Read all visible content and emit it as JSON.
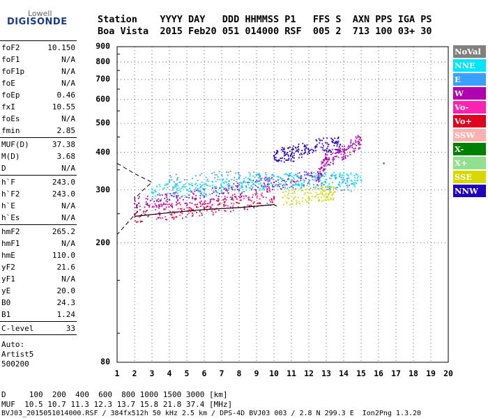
{
  "logo": {
    "top": "Lowell",
    "main": "DIGISONDE"
  },
  "header": {
    "line1": "Station    YYYY DAY   DDD HHMMSS P1   FFS S  AXN PPS IGA PS",
    "line2": "Boa Vista  2015 Feb20 051 014000 RSF  005 2  713 100 03+ 30"
  },
  "params": [
    {
      "label": "foF2",
      "value": "10.150"
    },
    {
      "label": "foF1",
      "value": "N/A"
    },
    {
      "label": "foF1p",
      "value": "N/A"
    },
    {
      "label": "foE",
      "value": "N/A"
    },
    {
      "label": "foEp",
      "value": "0.46"
    },
    {
      "label": "fxI",
      "value": "10.55"
    },
    {
      "label": "foEs",
      "value": "N/A"
    },
    {
      "label": "fmin",
      "value": "2.85"
    },
    {
      "label": "MUF(D)",
      "value": "37.38"
    },
    {
      "label": "M(D)",
      "value": "3.68"
    },
    {
      "label": "D",
      "value": "N/A"
    },
    {
      "label": "h`F",
      "value": "243.0"
    },
    {
      "label": "h`F2",
      "value": "243.0"
    },
    {
      "label": "h`E",
      "value": "N/A"
    },
    {
      "label": "h`Es",
      "value": "N/A"
    },
    {
      "label": "hmF2",
      "value": "265.2"
    },
    {
      "label": "hmF1",
      "value": "N/A"
    },
    {
      "label": "hmE",
      "value": "110.0"
    },
    {
      "label": "yF2",
      "value": "21.6"
    },
    {
      "label": "yF1",
      "value": "N/A"
    },
    {
      "label": "yE",
      "value": "20.0"
    },
    {
      "label": "B0",
      "value": "24.3"
    },
    {
      "label": "B1",
      "value": "1.24"
    },
    {
      "label": "C-level",
      "value": "33"
    }
  ],
  "auto": {
    "line1": "Auto:",
    "line2": "Artist5",
    "line3": "500200"
  },
  "legend": [
    {
      "label": "NoVal",
      "color": "#808080",
      "text": "#ffffff"
    },
    {
      "label": "NNE",
      "color": "#00e5ff",
      "text": "#ffffff"
    },
    {
      "label": "E",
      "color": "#3aa0ff",
      "text": "#ffffff"
    },
    {
      "label": "W",
      "color": "#b000b0",
      "text": "#ffffff"
    },
    {
      "label": "Vo-",
      "color": "#ff20b0",
      "text": "#ffffff"
    },
    {
      "label": "Vo+",
      "color": "#e00020",
      "text": "#ffffff"
    },
    {
      "label": "SSW",
      "color": "#ffb0b0",
      "text": "#ffffff"
    },
    {
      "label": "X-",
      "color": "#008000",
      "text": "#ffffff"
    },
    {
      "label": "X+",
      "color": "#90e090",
      "text": "#ffffff"
    },
    {
      "label": "SSE",
      "color": "#d8d800",
      "text": "#ffffff"
    },
    {
      "label": "NNW",
      "color": "#2000c0",
      "text": "#ffffff"
    }
  ],
  "footer": {
    "line1": "D     100  200  400  600  800 1000 1500 3000 [km]",
    "line2": "MUF  10.5 10.7 11.3 12.3 13.7 15.8 21.8 37.4 [MHz]",
    "line3": "BVJ03_2015051014000.RSF / 384fx512h 50 kHz 2.5 km / DPS-4D BVJ03 003 / 2.8 N 299.3 E  Ion2Png 1.3.20"
  },
  "chart_data": {
    "type": "scatter",
    "xlim": [
      1,
      20
    ],
    "ylim": [
      80,
      900
    ],
    "x_ticks": [
      1,
      2,
      3,
      4,
      5,
      6,
      7,
      8,
      9,
      10,
      11,
      12,
      13,
      14,
      15,
      16,
      17,
      18,
      19,
      20
    ],
    "y_ticks": [
      80,
      200,
      300,
      400,
      500,
      600,
      700,
      800,
      900
    ],
    "grid": "dotted",
    "legend_position": "right",
    "series": [
      {
        "name": "W",
        "values": [
          [
            2.0,
            270
          ],
          [
            4.0,
            278
          ],
          [
            6.0,
            286
          ],
          [
            8.0,
            300
          ],
          [
            10.0,
            318
          ],
          [
            12.5,
            330
          ],
          [
            13.0,
            380
          ],
          [
            14.0,
            402
          ],
          [
            15.0,
            440
          ]
        ]
      },
      {
        "name": "NNE",
        "values": [
          [
            3.0,
            295
          ],
          [
            5.0,
            300
          ],
          [
            7.0,
            308
          ],
          [
            9.0,
            318
          ],
          [
            11.0,
            322
          ],
          [
            13.0,
            325
          ],
          [
            15.0,
            322
          ]
        ]
      },
      {
        "name": "E",
        "values": [
          [
            4.0,
            320
          ],
          [
            8.0,
            330
          ],
          [
            12.0,
            320
          ],
          [
            14.5,
            315
          ]
        ]
      },
      {
        "name": "NNW",
        "values": [
          [
            10.0,
            390
          ],
          [
            11.0,
            395
          ],
          [
            12.4,
            420
          ],
          [
            13.8,
            425
          ]
        ]
      },
      {
        "name": "Vo-",
        "values": [
          [
            2.0,
            250
          ],
          [
            6.0,
            262
          ],
          [
            10.0,
            285
          ]
        ]
      },
      {
        "name": "Vo+",
        "values": [
          [
            2.0,
            248
          ],
          [
            6.0,
            260
          ],
          [
            10.0,
            282
          ]
        ]
      },
      {
        "name": "SSE",
        "values": [
          [
            10.5,
            283
          ],
          [
            12.5,
            290
          ],
          [
            13.5,
            296
          ]
        ]
      },
      {
        "name": "X-",
        "values": [
          [
            16.3,
            368
          ]
        ]
      }
    ],
    "profile_curve": [
      [
        2.0,
        245
      ],
      [
        4.0,
        252
      ],
      [
        6.0,
        258
      ],
      [
        8.0,
        262
      ],
      [
        10.0,
        268
      ],
      [
        10.15,
        265
      ]
    ],
    "dashed_curve": [
      [
        1.0,
        368
      ],
      [
        2.0,
        340
      ],
      [
        3.0,
        318
      ],
      [
        2.5,
        300
      ],
      [
        2.0,
        280
      ],
      [
        2.2,
        255
      ],
      [
        1.0,
        213
      ]
    ]
  }
}
